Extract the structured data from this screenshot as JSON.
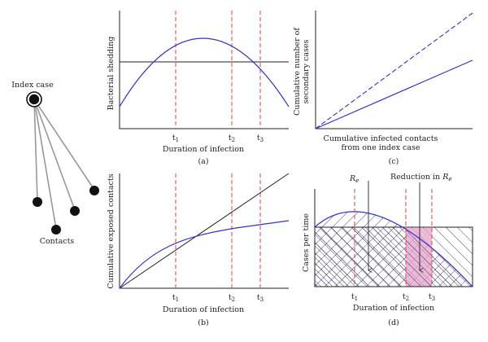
{
  "colors": {
    "curve": "#3333cc",
    "dashed": "#e04040",
    "black": "#222222",
    "pink": "#e5a2cc",
    "hatch": "#1a1a5e"
  },
  "network": {
    "index_label": "Index case",
    "contacts_label": "Contacts"
  },
  "panel_a": {
    "caption": "(a)",
    "xlabel": "Duration of infection",
    "ylabel": "Bacterial shedding",
    "ticks": [
      {
        "base": "t",
        "sub": "1"
      },
      {
        "base": "t",
        "sub": "2"
      },
      {
        "base": "t",
        "sub": "3"
      }
    ]
  },
  "panel_b": {
    "caption": "(b)",
    "xlabel": "Duration of infection",
    "ylabel": "Cumulative exposed contacts",
    "ticks": [
      {
        "base": "t",
        "sub": "1"
      },
      {
        "base": "t",
        "sub": "2"
      },
      {
        "base": "t",
        "sub": "3"
      }
    ]
  },
  "panel_c": {
    "caption": "(c)",
    "xlabel_line1": "Cumulative infected contacts",
    "xlabel_line2": "from one index case",
    "ylabel_line1": "Cumulative number of",
    "ylabel_line2": "secondary cases"
  },
  "panel_d": {
    "caption": "(d)",
    "xlabel": "Duration of infection",
    "ylabel": "Cases per time",
    "re_base": "R",
    "re_sub": "e",
    "reduction_text": "Reduction in ",
    "ticks": [
      {
        "base": "t",
        "sub": "1"
      },
      {
        "base": "t",
        "sub": "2"
      },
      {
        "base": "t",
        "sub": "3"
      }
    ]
  }
}
